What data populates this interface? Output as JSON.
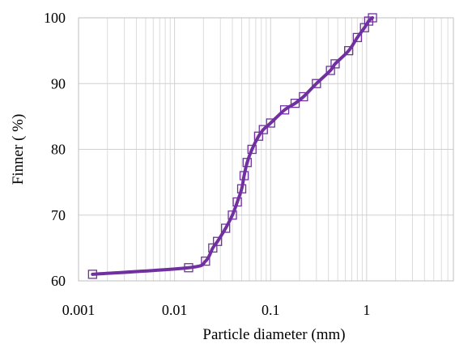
{
  "chart_data": {
    "type": "scatter",
    "x_scale": "log",
    "xlim": [
      0.001,
      8
    ],
    "ylim": [
      60,
      100
    ],
    "xlabel": "Particle diameter (mm)",
    "ylabel": "Finner ( %)",
    "title": "",
    "grid": true,
    "colors": {
      "series": "#7030a0",
      "marker": "#7030a0"
    },
    "x_ticks": [
      {
        "value": 0.001,
        "label": "0.001"
      },
      {
        "value": 0.01,
        "label": "0.01"
      },
      {
        "value": 0.1,
        "label": "0.1"
      },
      {
        "value": 1,
        "label": "1"
      }
    ],
    "y_ticks": [
      {
        "value": 60,
        "label": "60"
      },
      {
        "value": 70,
        "label": "70"
      },
      {
        "value": 80,
        "label": "80"
      },
      {
        "value": 90,
        "label": "90"
      },
      {
        "value": 100,
        "label": "100"
      }
    ],
    "series": [
      {
        "markers": "open-square",
        "line": "smooth",
        "points": [
          {
            "x": 0.0014,
            "y": 61
          },
          {
            "x": 0.014,
            "y": 62
          },
          {
            "x": 0.021,
            "y": 63
          },
          {
            "x": 0.025,
            "y": 65
          },
          {
            "x": 0.028,
            "y": 66
          },
          {
            "x": 0.034,
            "y": 68
          },
          {
            "x": 0.04,
            "y": 70
          },
          {
            "x": 0.045,
            "y": 72
          },
          {
            "x": 0.05,
            "y": 74
          },
          {
            "x": 0.053,
            "y": 76
          },
          {
            "x": 0.057,
            "y": 78
          },
          {
            "x": 0.064,
            "y": 80
          },
          {
            "x": 0.075,
            "y": 82
          },
          {
            "x": 0.084,
            "y": 83
          },
          {
            "x": 0.1,
            "y": 84
          },
          {
            "x": 0.14,
            "y": 86
          },
          {
            "x": 0.18,
            "y": 87
          },
          {
            "x": 0.22,
            "y": 88
          },
          {
            "x": 0.3,
            "y": 90
          },
          {
            "x": 0.42,
            "y": 92
          },
          {
            "x": 0.47,
            "y": 93
          },
          {
            "x": 0.65,
            "y": 95
          },
          {
            "x": 0.8,
            "y": 97
          },
          {
            "x": 0.95,
            "y": 98.5
          },
          {
            "x": 1.05,
            "y": 99.5
          },
          {
            "x": 1.15,
            "y": 100
          }
        ]
      }
    ]
  }
}
